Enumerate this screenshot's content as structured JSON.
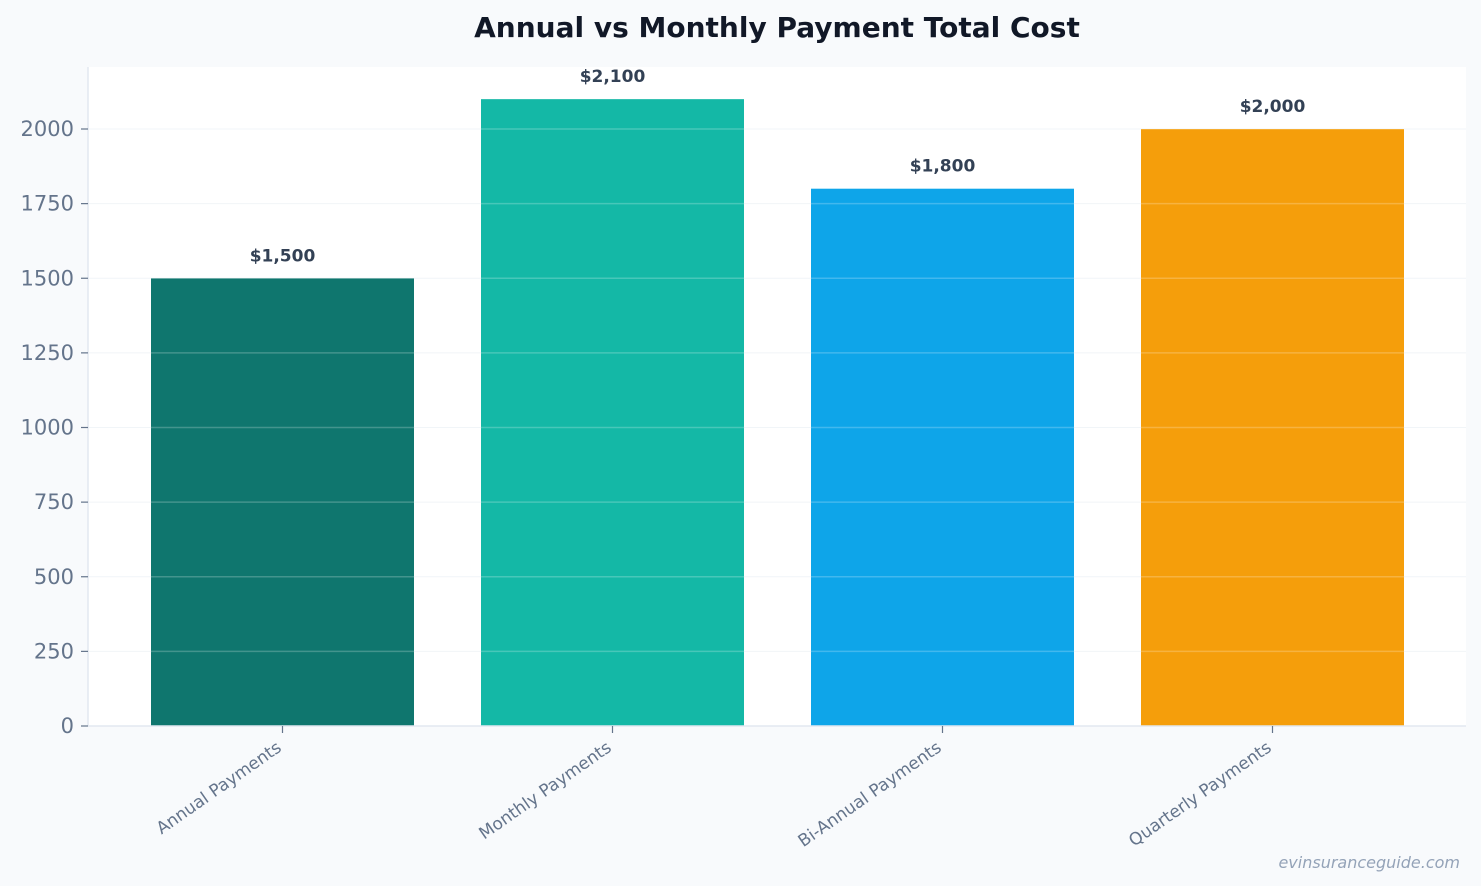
{
  "chart_data": {
    "type": "bar",
    "title": "Annual vs Monthly Payment Total Cost",
    "xlabel": "",
    "ylabel": "",
    "categories": [
      "Annual Payments",
      "Monthly Payments",
      "Bi-Annual Payments",
      "Quarterly Payments"
    ],
    "values": [
      1500,
      2100,
      1800,
      2000
    ],
    "data_labels": [
      "$1,500",
      "$2,100",
      "$1,800",
      "$2,000"
    ],
    "colors": [
      "#0f766e",
      "#14b8a6",
      "#0ea5e9",
      "#f59e0b"
    ],
    "ylim": [
      0,
      2200
    ],
    "yticks": [
      0,
      250,
      500,
      750,
      1000,
      1250,
      1500,
      1750,
      2000
    ],
    "grid": true,
    "legend": "none"
  },
  "watermark": "evinsuranceguide.com"
}
